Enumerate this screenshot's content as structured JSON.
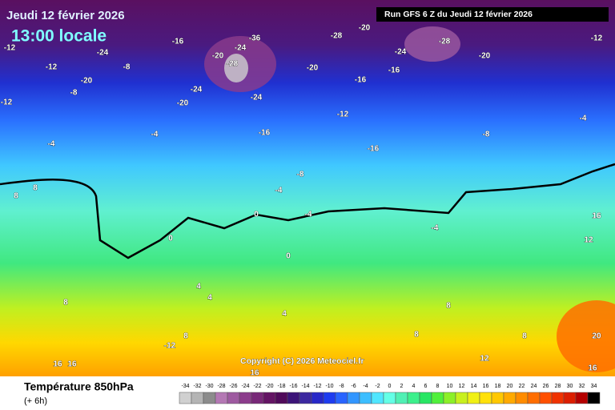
{
  "header": {
    "date": "Jeudi 12 février 2026",
    "time": "13:00 locale",
    "run": "Run GFS 6 Z du Jeudi 12 février 2026"
  },
  "copyright": "Copyright (C) 2026 Meteociel.fr",
  "footer": {
    "title": "Température 850hPa",
    "step": "(+ 6h)"
  },
  "legend": {
    "values": [
      -34,
      -32,
      -30,
      -28,
      -26,
      -24,
      -22,
      -20,
      -18,
      -16,
      -14,
      -12,
      -10,
      -8,
      -6,
      -4,
      -2,
      0,
      2,
      4,
      6,
      8,
      10,
      12,
      14,
      16,
      18,
      20,
      22,
      24,
      26,
      28,
      30,
      32,
      34
    ],
    "colors": [
      "#d0d0d0",
      "#b4b4b4",
      "#8c8c8c",
      "#b478b4",
      "#9e5aa0",
      "#8c3c8c",
      "#782878",
      "#641464",
      "#500a5a",
      "#3c1478",
      "#3c28a0",
      "#2828c8",
      "#1e3cf0",
      "#2864ff",
      "#3296ff",
      "#3cbeff",
      "#50e6ff",
      "#64ffe6",
      "#50f0b4",
      "#3cf08c",
      "#28e664",
      "#50f03c",
      "#8cf028",
      "#c8f01e",
      "#f0f014",
      "#ffe10a",
      "#ffc800",
      "#ffaa00",
      "#ff8c00",
      "#ff6e00",
      "#ff5000",
      "#f03200",
      "#dc1e00",
      "#b40000",
      "#000000"
    ]
  },
  "map_labels": [
    -12,
    -12,
    -20,
    -24,
    -8,
    -16,
    -20,
    -24,
    -36,
    -28,
    -24,
    -20,
    -24,
    -20,
    -28,
    -20,
    -24,
    -16,
    -28,
    -20,
    -12,
    -16,
    -12,
    -16,
    -16,
    -12,
    -8,
    -4,
    -4,
    -8,
    -8,
    -4,
    -4,
    -4,
    0,
    0,
    0,
    -4,
    8,
    8,
    4,
    4,
    4,
    8,
    8,
    -12,
    16,
    16,
    16,
    16,
    20,
    12,
    16,
    8,
    8,
    12,
    8
  ]
}
